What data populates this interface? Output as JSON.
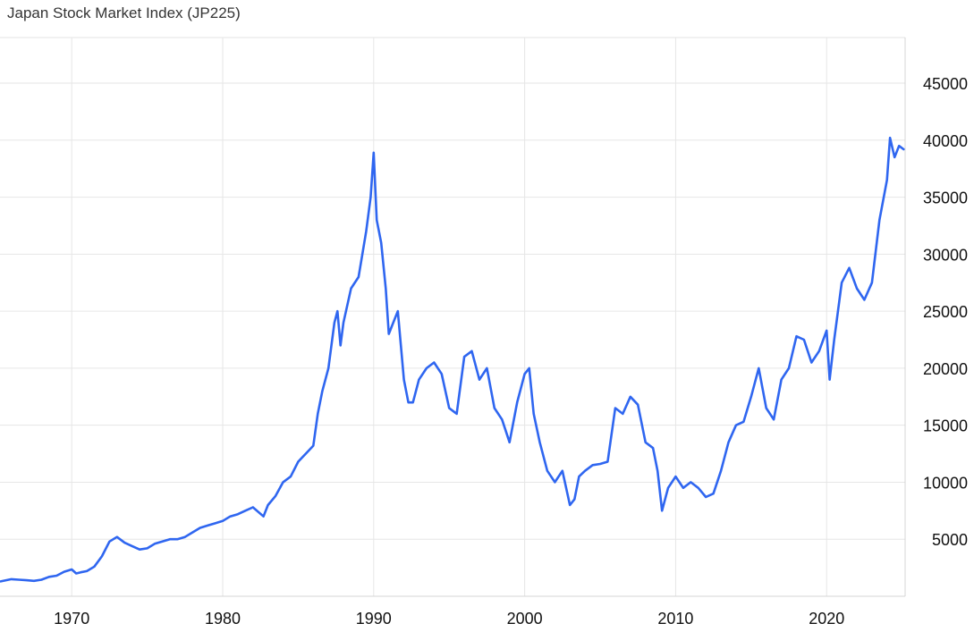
{
  "chart_data": {
    "type": "line",
    "title": "Japan Stock Market Index (JP225)",
    "xlabel": "",
    "ylabel": "",
    "xlim": [
      1965.25,
      2025.2
    ],
    "ylim": [
      0,
      49000
    ],
    "grid": true,
    "legend": "none",
    "line_color": "#2f66f0",
    "x_ticks": [
      1970,
      1980,
      1990,
      2000,
      2010,
      2020
    ],
    "y_ticks": [
      5000,
      10000,
      15000,
      20000,
      25000,
      30000,
      35000,
      40000,
      45000
    ],
    "series": [
      {
        "x": [
          1965.3,
          1966.0,
          1966.5,
          1967.0,
          1967.5,
          1968.0,
          1968.5,
          1969.0,
          1969.5,
          1970.0,
          1970.3,
          1970.6,
          1971.0,
          1971.5,
          1972.0,
          1972.5,
          1973.0,
          1973.5,
          1974.0,
          1974.5,
          1975.0,
          1975.5,
          1976.0,
          1976.5,
          1977.0,
          1977.5,
          1978.0,
          1978.5,
          1979.0,
          1979.5,
          1980.0,
          1980.5,
          1981.0,
          1981.5,
          1982.0,
          1982.7,
          1983.0,
          1983.5,
          1984.0,
          1984.5,
          1985.0,
          1985.5,
          1986.0,
          1986.3,
          1986.6,
          1987.0,
          1987.4,
          1987.6,
          1987.8,
          1988.0,
          1988.5,
          1989.0,
          1989.5,
          1989.8,
          1990.0,
          1990.2,
          1990.5,
          1990.8,
          1991.0,
          1991.3,
          1991.6,
          1992.0,
          1992.3,
          1992.6,
          1993.0,
          1993.5,
          1994.0,
          1994.5,
          1995.0,
          1995.5,
          1996.0,
          1996.5,
          1997.0,
          1997.5,
          1998.0,
          1998.5,
          1999.0,
          1999.5,
          2000.0,
          2000.3,
          2000.6,
          2001.0,
          2001.5,
          2002.0,
          2002.5,
          2003.0,
          2003.3,
          2003.6,
          2004.0,
          2004.5,
          2005.0,
          2005.5,
          2006.0,
          2006.5,
          2007.0,
          2007.5,
          2008.0,
          2008.5,
          2008.8,
          2009.1,
          2009.5,
          2010.0,
          2010.5,
          2011.0,
          2011.5,
          2012.0,
          2012.5,
          2013.0,
          2013.5,
          2014.0,
          2014.5,
          2015.0,
          2015.5,
          2016.0,
          2016.5,
          2017.0,
          2017.5,
          2018.0,
          2018.5,
          2019.0,
          2019.5,
          2020.0,
          2020.2,
          2020.5,
          2021.0,
          2021.5,
          2022.0,
          2022.5,
          2023.0,
          2023.5,
          2024.0,
          2024.2,
          2024.5,
          2024.8,
          2025.1
        ],
        "y": [
          1300,
          1500,
          1450,
          1400,
          1350,
          1450,
          1700,
          1800,
          2150,
          2350,
          2000,
          2100,
          2200,
          2600,
          3500,
          4800,
          5200,
          4700,
          4400,
          4100,
          4200,
          4600,
          4800,
          5000,
          5000,
          5200,
          5600,
          6000,
          6200,
          6400,
          6600,
          7000,
          7200,
          7500,
          7800,
          7000,
          8000,
          8800,
          10000,
          10500,
          11800,
          12500,
          13200,
          16000,
          18000,
          20000,
          24000,
          25000,
          22000,
          24000,
          27000,
          28000,
          32000,
          35000,
          38900,
          33000,
          31000,
          27000,
          23000,
          24000,
          25000,
          19000,
          17000,
          17000,
          19000,
          20000,
          20500,
          19500,
          16500,
          16000,
          21000,
          21500,
          19000,
          20000,
          16500,
          15500,
          13500,
          17000,
          19500,
          20000,
          16000,
          13500,
          11000,
          10000,
          11000,
          8000,
          8500,
          10500,
          11000,
          11500,
          11600,
          11800,
          16500,
          16000,
          17500,
          16800,
          13500,
          13000,
          11000,
          7500,
          9500,
          10500,
          9500,
          10000,
          9500,
          8700,
          9000,
          11000,
          13500,
          15000,
          15300,
          17500,
          20000,
          16500,
          15500,
          19000,
          20000,
          22800,
          22500,
          20500,
          21500,
          23300,
          19000,
          22500,
          27500,
          28800,
          27000,
          26000,
          27500,
          33000,
          36500,
          40200,
          38500,
          39500,
          39200
        ]
      }
    ]
  }
}
